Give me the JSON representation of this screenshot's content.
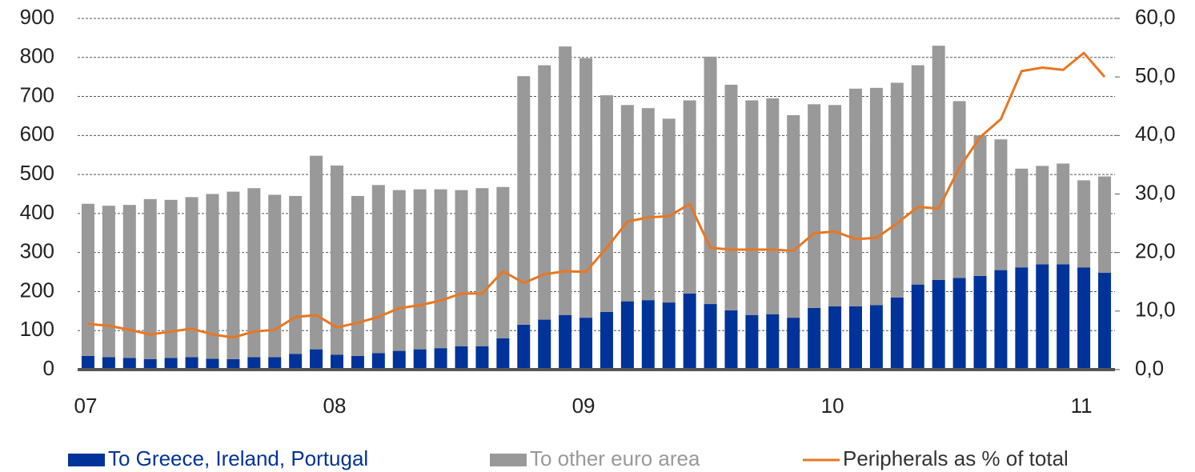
{
  "chart_data": {
    "type": "bar",
    "stacked": true,
    "categories": [
      "07",
      null,
      null,
      null,
      null,
      null,
      null,
      null,
      null,
      null,
      null,
      null,
      "08",
      null,
      null,
      null,
      null,
      null,
      null,
      null,
      null,
      null,
      null,
      null,
      "09",
      null,
      null,
      null,
      null,
      null,
      null,
      null,
      null,
      null,
      null,
      null,
      "10",
      null,
      null,
      null,
      null,
      null,
      null,
      null,
      null,
      null,
      null,
      null,
      "11",
      null
    ],
    "series": [
      {
        "name": "To Greece, Ireland, Portugal",
        "color": "#003399",
        "type": "bar",
        "values": [
          35,
          32,
          30,
          27,
          30,
          32,
          28,
          27,
          32,
          32,
          40,
          52,
          38,
          35,
          42,
          48,
          52,
          55,
          60,
          60,
          80,
          115,
          128,
          140,
          133,
          148,
          175,
          178,
          172,
          195,
          168,
          152,
          140,
          142,
          133,
          158,
          162,
          162,
          165,
          185,
          218,
          230,
          235,
          240,
          255,
          262,
          270,
          270,
          262,
          248
        ]
      },
      {
        "name": "To other euro area",
        "color": "#999999",
        "type": "bar",
        "values": [
          390,
          388,
          392,
          410,
          405,
          410,
          422,
          429,
          433,
          416,
          405,
          496,
          485,
          410,
          431,
          412,
          410,
          407,
          400,
          405,
          388,
          637,
          652,
          688,
          665,
          555,
          503,
          492,
          471,
          495,
          634,
          578,
          550,
          553,
          519,
          522,
          516,
          558,
          557,
          550,
          562,
          600,
          453,
          360,
          335,
          253,
          252,
          258,
          223,
          247
        ]
      },
      {
        "name": "Peripherals as % of total",
        "color": "#e87722",
        "type": "line",
        "axis": "y2",
        "values": [
          7.8,
          7.5,
          6.8,
          6.0,
          6.5,
          7.0,
          6.0,
          5.5,
          6.5,
          6.8,
          9.0,
          9.3,
          7.2,
          8.0,
          9.0,
          10.5,
          11.0,
          11.8,
          13.0,
          13.0,
          16.8,
          14.8,
          16.3,
          16.8,
          16.7,
          20.8,
          25.3,
          26.0,
          26.2,
          28.3,
          20.8,
          20.5,
          20.5,
          20.5,
          20.3,
          23.3,
          23.6,
          22.3,
          22.5,
          25.0,
          27.8,
          27.5,
          34.5,
          39.7,
          42.8,
          51.0,
          51.6,
          51.2,
          54.1,
          50.0
        ]
      }
    ],
    "ylim": [
      0,
      900
    ],
    "yticks": [
      0,
      100,
      200,
      300,
      400,
      500,
      600,
      700,
      800,
      900
    ],
    "y2lim": [
      0,
      60
    ],
    "y2ticks": [
      {
        "value": 0,
        "label": "0,0"
      },
      {
        "value": 10,
        "label": "10,0"
      },
      {
        "value": 20,
        "label": "20,0"
      },
      {
        "value": 30,
        "label": "30,0"
      },
      {
        "value": 40,
        "label": "40,0"
      },
      {
        "value": 50,
        "label": "50,0"
      },
      {
        "value": 60,
        "label": "60,0"
      }
    ],
    "grid": true,
    "legend": "bottom"
  }
}
